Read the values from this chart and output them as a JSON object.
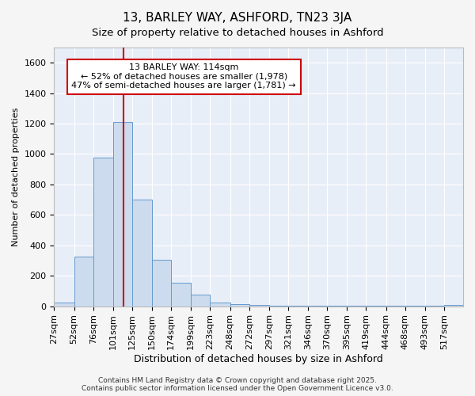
{
  "title": "13, BARLEY WAY, ASHFORD, TN23 3JA",
  "subtitle": "Size of property relative to detached houses in Ashford",
  "xlabel": "Distribution of detached houses by size in Ashford",
  "ylabel": "Number of detached properties",
  "bin_labels": [
    "27sqm",
    "52sqm",
    "76sqm",
    "101sqm",
    "125sqm",
    "150sqm",
    "174sqm",
    "199sqm",
    "223sqm",
    "248sqm",
    "272sqm",
    "297sqm",
    "321sqm",
    "346sqm",
    "370sqm",
    "395sqm",
    "419sqm",
    "444sqm",
    "468sqm",
    "493sqm",
    "517sqm"
  ],
  "bin_edges": [
    27,
    52,
    76,
    101,
    125,
    150,
    174,
    199,
    223,
    248,
    272,
    297,
    321,
    346,
    370,
    395,
    419,
    444,
    468,
    493,
    517,
    541
  ],
  "bar_heights": [
    25,
    325,
    975,
    1210,
    700,
    305,
    155,
    75,
    25,
    15,
    10,
    5,
    5,
    3,
    2,
    2,
    1,
    1,
    1,
    1,
    8
  ],
  "bar_color": "#ccdcee",
  "bar_edge_color": "#6699cc",
  "red_line_x": 114,
  "annotation_line1": "13 BARLEY WAY: 114sqm",
  "annotation_line2": "← 52% of detached houses are smaller (1,978)",
  "annotation_line3": "47% of semi-detached houses are larger (1,781) →",
  "annotation_box_edge": "#cc0000",
  "ylim": [
    0,
    1700
  ],
  "yticks": [
    0,
    200,
    400,
    600,
    800,
    1000,
    1200,
    1400,
    1600
  ],
  "plot_bg_color": "#e8eef8",
  "fig_bg_color": "#f5f5f5",
  "grid_color": "#ffffff",
  "footer_line1": "Contains HM Land Registry data © Crown copyright and database right 2025.",
  "footer_line2": "Contains public sector information licensed under the Open Government Licence v3.0.",
  "title_fontsize": 11,
  "subtitle_fontsize": 9.5,
  "xlabel_fontsize": 9,
  "ylabel_fontsize": 8,
  "tick_fontsize": 8,
  "annotation_fontsize": 8,
  "footer_fontsize": 6.5
}
